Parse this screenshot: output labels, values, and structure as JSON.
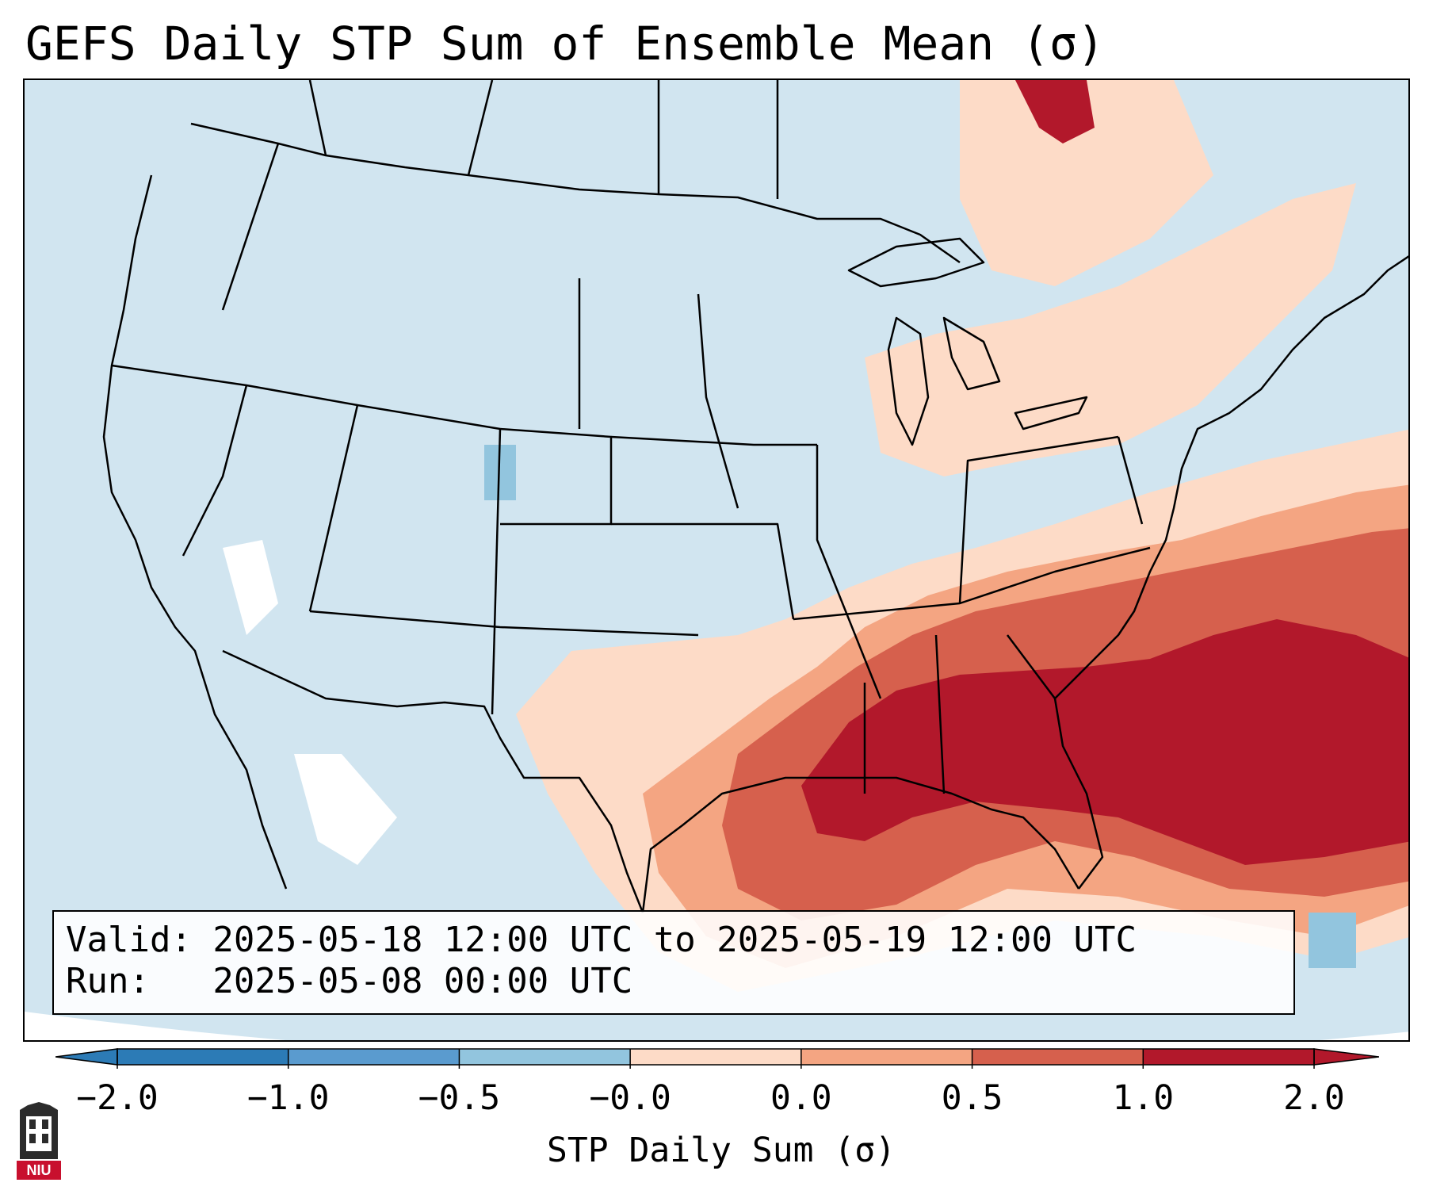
{
  "title": "GEFS Daily STP Sum of Ensemble Mean (σ)",
  "info": {
    "valid_line": "Valid: 2025-05-18 12:00 UTC to 2025-05-19 12:00 UTC",
    "run_line": "Run:   2025-05-08 00:00 UTC"
  },
  "colorbar": {
    "label": "STP Daily Sum (σ)",
    "ticks": [
      "−2.0",
      "−1.0",
      "−0.5",
      "−0.0",
      "0.0",
      "0.5",
      "1.0",
      "2.0"
    ],
    "colors": [
      "#2c7bb6",
      "#5a9bcf",
      "#92c5de",
      "#d1e5f0",
      "#fddbc7",
      "#f4a582",
      "#d6604d",
      "#b2182b"
    ],
    "extend": "both"
  },
  "map": {
    "region": "Contiguous United States",
    "ocean_color": "#d1e5f0",
    "neutral_color": "#ffffff",
    "projection": "Lambert Conformal"
  },
  "logo": {
    "text": "NIU",
    "name": "niu-logo-icon"
  }
}
